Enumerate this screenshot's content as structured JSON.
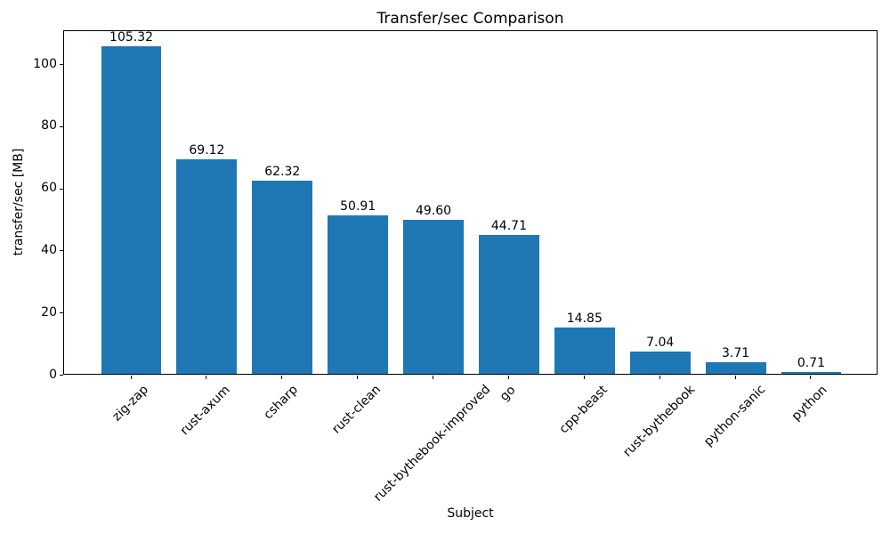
{
  "chart_data": {
    "type": "bar",
    "title": "Transfer/sec Comparison",
    "xlabel": "Subject",
    "ylabel": "transfer/sec [MB]",
    "categories": [
      "zig-zap",
      "rust-axum",
      "csharp",
      "rust-clean",
      "rust-bythebook-improved",
      "go",
      "cpp-beast",
      "rust-bythebook",
      "python-sanic",
      "python"
    ],
    "values": [
      105.32,
      69.12,
      62.32,
      50.91,
      49.6,
      44.71,
      14.85,
      7.04,
      3.71,
      0.71
    ],
    "value_labels": [
      "105.32",
      "69.12",
      "62.32",
      "50.91",
      "49.60",
      "44.71",
      "14.85",
      "7.04",
      "3.71",
      "0.71"
    ],
    "yticks": [
      0,
      20,
      40,
      60,
      80,
      100
    ],
    "ylim": [
      0,
      110.9
    ],
    "bar_color": "#1f77b4",
    "text_color": "#000000",
    "grid": false,
    "legend_position": "none",
    "xtick_rotation_deg": 45
  }
}
